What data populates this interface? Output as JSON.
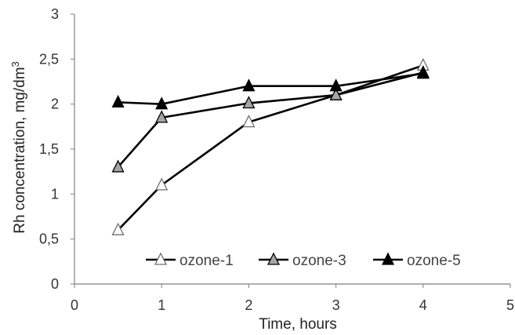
{
  "chart_data": {
    "type": "line",
    "xlabel": "Time, hours",
    "ylabel_main": "Rh concentration, mg/dm",
    "ylabel_sup": "3",
    "xlim": [
      0,
      5
    ],
    "ylim": [
      0,
      3
    ],
    "x_ticks": [
      0,
      1,
      2,
      3,
      4,
      5
    ],
    "x_tick_labels": [
      "0",
      "1",
      "2",
      "3",
      "4",
      "5"
    ],
    "y_ticks": [
      0,
      0.5,
      1,
      1.5,
      2,
      2.5,
      3
    ],
    "y_tick_labels": [
      "0",
      "0,5",
      "1",
      "1,5",
      "2",
      "2,5",
      "3"
    ],
    "grid": false,
    "legend_position": "bottom-inside",
    "series": [
      {
        "name": "ozone-1",
        "marker": "triangle-open",
        "marker_fill": "#ffffff",
        "line_color": "#000000",
        "x": [
          0.5,
          1,
          2,
          3,
          4
        ],
        "y": [
          0.6,
          1.1,
          1.8,
          2.1,
          2.43
        ]
      },
      {
        "name": "ozone-3",
        "marker": "triangle-gray",
        "marker_fill": "#a6a6a6",
        "line_color": "#000000",
        "x": [
          0.5,
          1,
          2,
          3,
          4
        ],
        "y": [
          1.3,
          1.85,
          2.01,
          2.1,
          2.35
        ]
      },
      {
        "name": "ozone-5",
        "marker": "triangle-filled",
        "marker_fill": "#000000",
        "line_color": "#000000",
        "x": [
          0.5,
          1,
          2,
          3,
          4
        ],
        "y": [
          2.02,
          2.0,
          2.2,
          2.2,
          2.34
        ]
      }
    ]
  }
}
